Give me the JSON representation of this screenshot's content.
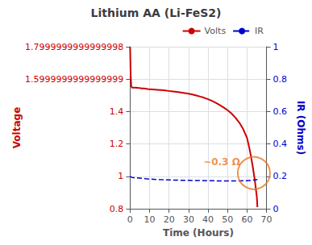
{
  "chart_data": {
    "type": "line",
    "title": "Lithium AA (Li-FeS2)",
    "xlabel": "Time (Hours)",
    "ylabel": "Voltage",
    "y2label": "IR (Ohms)",
    "xlim": [
      0,
      70
    ],
    "xticks": [
      0,
      10,
      20,
      30,
      40,
      50,
      60,
      70
    ],
    "ylim": [
      0.8,
      1.8
    ],
    "yticks": [
      0.8,
      1.0,
      1.2,
      1.4,
      1.6,
      1.8
    ],
    "y2lim": [
      0.0,
      1.0
    ],
    "y2ticks": [
      0.0,
      0.2,
      0.4,
      0.6,
      0.8,
      1.0
    ],
    "grid": true,
    "legend": "upper right",
    "series": [
      {
        "name": "Volts",
        "color": "#cc0000",
        "line_style": "solid",
        "x": [
          0,
          0.3,
          0.6,
          1,
          2,
          3,
          4,
          5,
          6,
          7,
          8,
          9,
          10,
          12,
          14,
          16,
          18,
          20,
          22,
          24,
          26,
          28,
          30,
          32,
          34,
          36,
          38,
          40,
          42,
          44,
          46,
          48,
          50,
          52,
          54,
          56,
          58,
          60,
          61,
          62,
          63,
          64,
          64.5,
          65,
          65.2,
          65.3
        ],
        "values": [
          1.8,
          1.62,
          1.555,
          1.548,
          1.547,
          1.548,
          1.546,
          1.545,
          1.543,
          1.542,
          1.541,
          1.539,
          1.538,
          1.536,
          1.534,
          1.532,
          1.53,
          1.527,
          1.524,
          1.521,
          1.518,
          1.514,
          1.51,
          1.505,
          1.499,
          1.492,
          1.485,
          1.476,
          1.466,
          1.454,
          1.44,
          1.425,
          1.408,
          1.388,
          1.363,
          1.332,
          1.292,
          1.237,
          1.185,
          1.125,
          1.055,
          0.975,
          0.925,
          0.875,
          0.84,
          0.81
        ]
      },
      {
        "name": "IR",
        "color": "#0000cc",
        "line_style": "dashed",
        "axis": "y2",
        "x": [
          0,
          1,
          2,
          4,
          6,
          8,
          10,
          15,
          20,
          25,
          30,
          35,
          40,
          45,
          50,
          55,
          60,
          62,
          64,
          65.3
        ],
        "values": [
          0.2,
          0.193,
          0.192,
          0.19,
          0.188,
          0.185,
          0.183,
          0.18,
          0.178,
          0.176,
          0.175,
          0.174,
          0.173,
          0.172,
          0.172,
          0.172,
          0.173,
          0.175,
          0.178,
          0.18
        ]
      }
    ],
    "annotations": [
      {
        "type": "text",
        "text": "~0.3 Ω",
        "x": 47,
        "y": 1.09,
        "color": "#e87722"
      },
      {
        "type": "circle",
        "x": 63.5,
        "y": 1.02,
        "color": "#e87722"
      }
    ]
  }
}
